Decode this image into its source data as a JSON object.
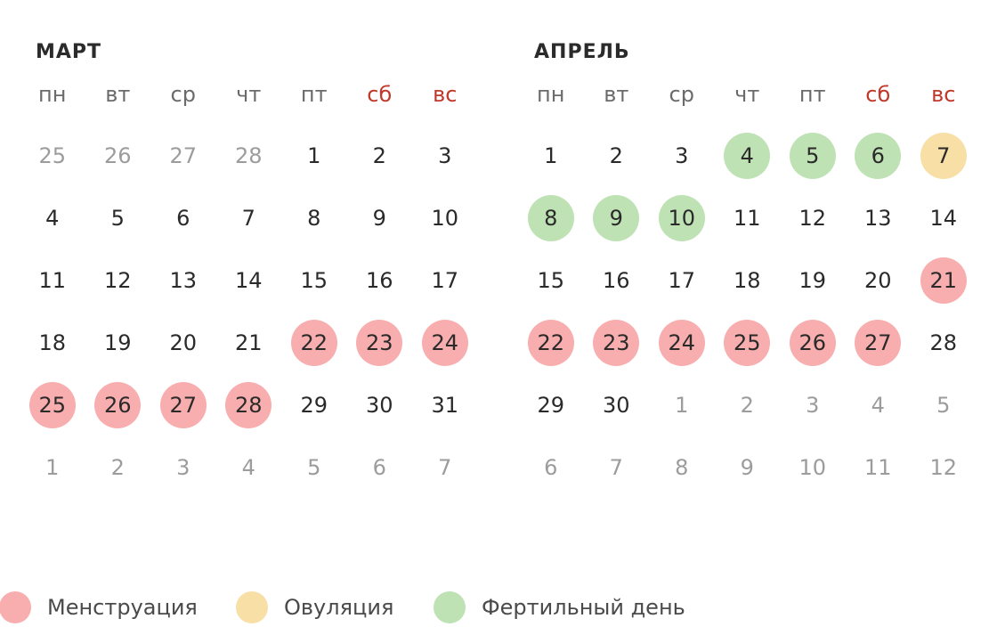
{
  "colors": {
    "menstruation": "#f8aeae",
    "ovulation": "#f7dfa6",
    "fertile": "#bfe2b5",
    "weekend_label": "#c0392b",
    "other_month_day": "#9c9c9c"
  },
  "weekdays": [
    {
      "label": "пн",
      "weekend": false
    },
    {
      "label": "вт",
      "weekend": false
    },
    {
      "label": "ср",
      "weekend": false
    },
    {
      "label": "чт",
      "weekend": false
    },
    {
      "label": "пт",
      "weekend": false
    },
    {
      "label": "сб",
      "weekend": true
    },
    {
      "label": "вс",
      "weekend": true
    }
  ],
  "months": [
    {
      "id": "march",
      "title": "МАРТ",
      "weeks": [
        [
          {
            "d": "25",
            "other": true
          },
          {
            "d": "26",
            "other": true
          },
          {
            "d": "27",
            "other": true
          },
          {
            "d": "28",
            "other": true
          },
          {
            "d": "1"
          },
          {
            "d": "2"
          },
          {
            "d": "3"
          }
        ],
        [
          {
            "d": "4"
          },
          {
            "d": "5"
          },
          {
            "d": "6"
          },
          {
            "d": "7"
          },
          {
            "d": "8"
          },
          {
            "d": "9"
          },
          {
            "d": "10"
          }
        ],
        [
          {
            "d": "11"
          },
          {
            "d": "12"
          },
          {
            "d": "13"
          },
          {
            "d": "14"
          },
          {
            "d": "15"
          },
          {
            "d": "16"
          },
          {
            "d": "17"
          }
        ],
        [
          {
            "d": "18"
          },
          {
            "d": "19"
          },
          {
            "d": "20"
          },
          {
            "d": "21"
          },
          {
            "d": "22",
            "mark": "men"
          },
          {
            "d": "23",
            "mark": "men"
          },
          {
            "d": "24",
            "mark": "men"
          }
        ],
        [
          {
            "d": "25",
            "mark": "men"
          },
          {
            "d": "26",
            "mark": "men"
          },
          {
            "d": "27",
            "mark": "men"
          },
          {
            "d": "28",
            "mark": "men"
          },
          {
            "d": "29"
          },
          {
            "d": "30"
          },
          {
            "d": "31"
          }
        ],
        [
          {
            "d": "1",
            "other": true
          },
          {
            "d": "2",
            "other": true
          },
          {
            "d": "3",
            "other": true
          },
          {
            "d": "4",
            "other": true
          },
          {
            "d": "5",
            "other": true
          },
          {
            "d": "6",
            "other": true
          },
          {
            "d": "7",
            "other": true
          }
        ]
      ]
    },
    {
      "id": "april",
      "title": "АПРЕЛЬ",
      "weeks": [
        [
          {
            "d": "1"
          },
          {
            "d": "2"
          },
          {
            "d": "3"
          },
          {
            "d": "4",
            "mark": "fer"
          },
          {
            "d": "5",
            "mark": "fer"
          },
          {
            "d": "6",
            "mark": "fer"
          },
          {
            "d": "7",
            "mark": "ovu"
          }
        ],
        [
          {
            "d": "8",
            "mark": "fer"
          },
          {
            "d": "9",
            "mark": "fer"
          },
          {
            "d": "10",
            "mark": "fer"
          },
          {
            "d": "11"
          },
          {
            "d": "12"
          },
          {
            "d": "13"
          },
          {
            "d": "14"
          }
        ],
        [
          {
            "d": "15"
          },
          {
            "d": "16"
          },
          {
            "d": "17"
          },
          {
            "d": "18"
          },
          {
            "d": "19"
          },
          {
            "d": "20"
          },
          {
            "d": "21",
            "mark": "men"
          }
        ],
        [
          {
            "d": "22",
            "mark": "men"
          },
          {
            "d": "23",
            "mark": "men"
          },
          {
            "d": "24",
            "mark": "men"
          },
          {
            "d": "25",
            "mark": "men"
          },
          {
            "d": "26",
            "mark": "men"
          },
          {
            "d": "27",
            "mark": "men"
          },
          {
            "d": "28"
          }
        ],
        [
          {
            "d": "29"
          },
          {
            "d": "30"
          },
          {
            "d": "1",
            "other": true
          },
          {
            "d": "2",
            "other": true
          },
          {
            "d": "3",
            "other": true
          },
          {
            "d": "4",
            "other": true
          },
          {
            "d": "5",
            "other": true
          }
        ],
        [
          {
            "d": "6",
            "other": true
          },
          {
            "d": "7",
            "other": true
          },
          {
            "d": "8",
            "other": true
          },
          {
            "d": "9",
            "other": true
          },
          {
            "d": "10",
            "other": true
          },
          {
            "d": "11",
            "other": true
          },
          {
            "d": "12",
            "other": true
          }
        ]
      ]
    }
  ],
  "legend": {
    "menstruation": "Менструация",
    "ovulation": "Овуляция",
    "fertile": "Фертильный день"
  }
}
